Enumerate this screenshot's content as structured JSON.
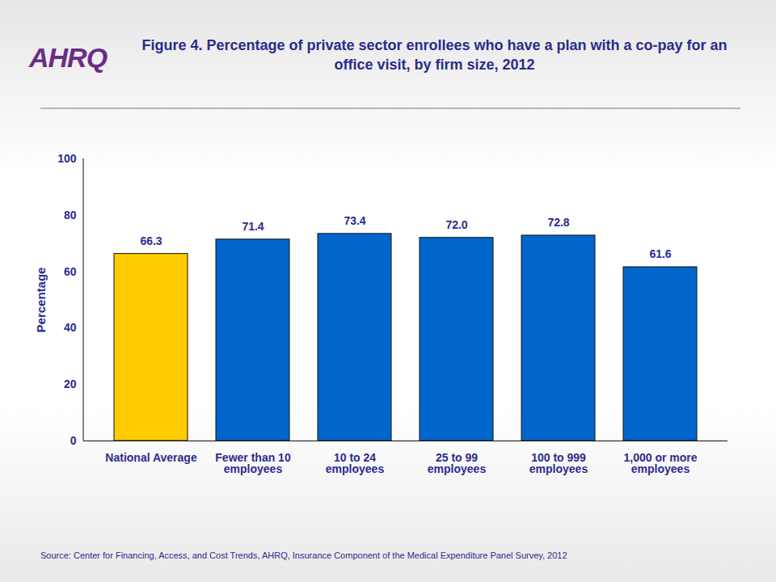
{
  "chart_data": {
    "type": "bar",
    "title": "Figure 4. Percentage of private sector enrollees who have a plan with a co-pay for an office visit, by firm size, 2012",
    "logo": "AHRQ",
    "ylabel": "Percentage",
    "source": "Source: Center for Financing, Access, and Cost Trends, AHRQ, Insurance Component of the Medical Expenditure Panel Survey,  2012",
    "categories": [
      "National Average",
      "Fewer than 10 employees",
      "10 to 24 employees",
      "25 to 99 employees",
      "100 to 999 employees",
      "1,000 or more employees"
    ],
    "values": [
      66.3,
      71.4,
      73.4,
      72.0,
      72.8,
      61.6
    ],
    "value_labels": [
      "66.3",
      "71.4",
      "73.4",
      "72.0",
      "72.8",
      "61.6"
    ],
    "colors": [
      "#ffcc00",
      "#0066cc",
      "#0066cc",
      "#0066cc",
      "#0066cc",
      "#0066cc"
    ],
    "ylim": [
      0,
      100
    ],
    "yticks": [
      0,
      20,
      40,
      60,
      80,
      100
    ],
    "grid": false,
    "data_labels": true
  }
}
